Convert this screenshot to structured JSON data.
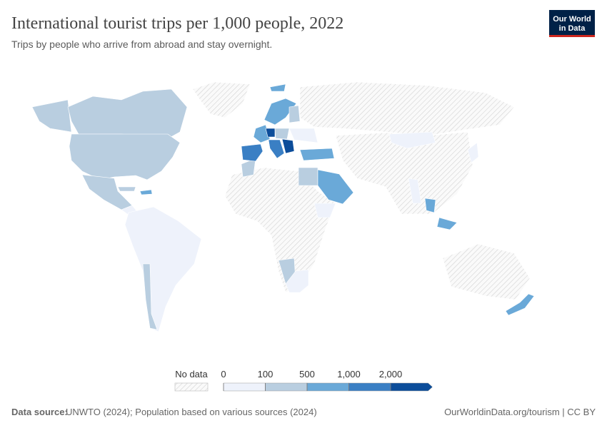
{
  "header": {
    "title": "International tourist trips per 1,000 people, 2022",
    "subtitle": "Trips by people who arrive from abroad and stay overnight."
  },
  "logo": [
    "Our World",
    "in Data"
  ],
  "legend": {
    "no_data": "No data",
    "ticks": [
      0,
      100,
      500,
      {
        "value": 1000,
        "label": "1,000"
      },
      {
        "value": 2000,
        "label": "2,000"
      }
    ],
    "colors": [
      "#eef2fb",
      "#b9cee0",
      "#6aa9d8",
      "#3a7fc4",
      "#0c4d9a"
    ]
  },
  "footer": {
    "source_label": "Data source:",
    "source": "UNWTO (2024); Population based on various sources (2024)",
    "url": "OurWorldinData.org/tourism | CC BY"
  }
}
